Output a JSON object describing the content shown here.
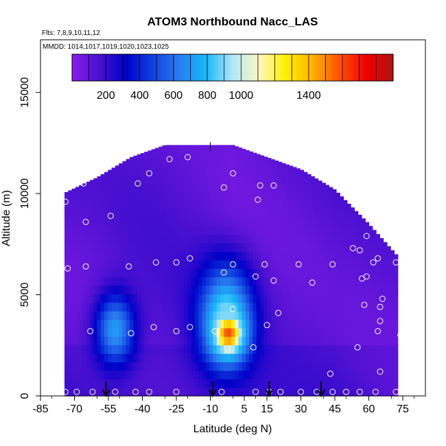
{
  "chart_data": {
    "type": "heatmap",
    "title": "ATOM3 Northbound Nacc_LAS",
    "subtitle_flights": "Flts: 7,8,9,10,11,12",
    "subtitle_dates": "MMDD: 1014,1017,1019,1020,1023,1025",
    "xlabel": "Latitude (deg N)",
    "ylabel": "Altitude (m)",
    "xlim": [
      -85,
      85
    ],
    "ylim": [
      0,
      17600
    ],
    "x_ticks": [
      -85,
      -70,
      -55,
      -40,
      -25,
      -10,
      5,
      15,
      30,
      45,
      60,
      75
    ],
    "x_tick_labels": [
      "-85",
      "-70",
      "-55",
      "-40",
      "-25",
      "-10",
      "5",
      "15",
      "30",
      "45",
      "60",
      "75"
    ],
    "y_ticks": [
      0,
      5000,
      10000,
      15000
    ],
    "y_tick_labels": [
      "0",
      "5000",
      "10000",
      "15000"
    ],
    "colorbar": {
      "range": [
        0,
        1900
      ],
      "ticks": [
        200,
        400,
        600,
        800,
        1000,
        1400
      ],
      "tick_labels": [
        "200",
        "400",
        "600",
        "800",
        "1000",
        "1400"
      ],
      "colors": [
        "#8a1ee8",
        "#4a10d0",
        "#0000c8",
        "#1040e0",
        "#2a7cf0",
        "#18b8f8",
        "#b0e8f8",
        "#fff8c0",
        "#fff000",
        "#ffb000",
        "#ff5000",
        "#f00000",
        "#b01010"
      ]
    },
    "profile_markers_x": [
      -56,
      -9,
      16,
      39
    ],
    "top_marker_x": -10,
    "field": [
      {
        "lat": -75,
        "alt": 0,
        "alt_top": 10000,
        "val": 120
      },
      {
        "lat": -60,
        "alt": 0,
        "alt_top": 10800,
        "val": 110
      },
      {
        "lat": -45,
        "alt": 0,
        "alt_top": 11800,
        "val": 130
      },
      {
        "lat": -30,
        "alt": 0,
        "alt_top": 12400,
        "val": 140
      },
      {
        "lat": -15,
        "alt": 0,
        "alt_top": 12400,
        "val": 130
      },
      {
        "lat": 0,
        "alt": 0,
        "alt_top": 12400,
        "val": 100
      },
      {
        "lat": 15,
        "alt": 0,
        "alt_top": 11800,
        "val": 110
      },
      {
        "lat": 30,
        "alt": 0,
        "alt_top": 11200,
        "val": 120
      },
      {
        "lat": 45,
        "alt": 0,
        "alt_top": 10200,
        "val": 130
      },
      {
        "lat": 60,
        "alt": 0,
        "alt_top": 8500,
        "val": 120
      },
      {
        "lat": 72,
        "alt": 0,
        "alt_top": 7000,
        "val": 110
      }
    ],
    "hotspots": [
      {
        "lat": -52,
        "alt": 3300,
        "val": 720,
        "rlat": 9,
        "ralt": 1800
      },
      {
        "lat": -2,
        "alt": 3100,
        "val": 1600,
        "rlat": 7,
        "ralt": 1100
      },
      {
        "lat": -3,
        "alt": 3900,
        "val": 900,
        "rlat": 12,
        "ralt": 2600
      }
    ],
    "samples": [
      {
        "lat": -83,
        "alt": 5400
      },
      {
        "lat": -77,
        "alt": 3400
      },
      {
        "lat": -76,
        "alt": 7500
      },
      {
        "lat": -74,
        "alt": 9600
      },
      {
        "lat": -73,
        "alt": 6300
      },
      {
        "lat": -66,
        "alt": 10500
      },
      {
        "lat": -65,
        "alt": 8600
      },
      {
        "lat": -65,
        "alt": 6400
      },
      {
        "lat": -63,
        "alt": 3200
      },
      {
        "lat": -54,
        "alt": 8900
      },
      {
        "lat": -46,
        "alt": 6400
      },
      {
        "lat": -45,
        "alt": 3100
      },
      {
        "lat": -42,
        "alt": 10500
      },
      {
        "lat": -37,
        "alt": 11000
      },
      {
        "lat": -35,
        "alt": 3400
      },
      {
        "lat": -34,
        "alt": 6600
      },
      {
        "lat": -28,
        "alt": 11700
      },
      {
        "lat": -25,
        "alt": 6600
      },
      {
        "lat": -25,
        "alt": 3200
      },
      {
        "lat": -20,
        "alt": 11800
      },
      {
        "lat": -19,
        "alt": 6800
      },
      {
        "lat": -19,
        "alt": 3400
      },
      {
        "lat": -10,
        "alt": 12600
      },
      {
        "lat": -8,
        "alt": 3200
      },
      {
        "lat": -4,
        "alt": 10300
      },
      {
        "lat": -4,
        "alt": 6100
      },
      {
        "lat": 0,
        "alt": 11000
      },
      {
        "lat": 0,
        "alt": 6500
      },
      {
        "lat": 0,
        "alt": 4300
      },
      {
        "lat": 9,
        "alt": 2400
      },
      {
        "lat": 10,
        "alt": 5900
      },
      {
        "lat": 11,
        "alt": 9700
      },
      {
        "lat": 12,
        "alt": 10400
      },
      {
        "lat": 14,
        "alt": 6500
      },
      {
        "lat": 15,
        "alt": 3500
      },
      {
        "lat": 18,
        "alt": 10400
      },
      {
        "lat": 18,
        "alt": 5700
      },
      {
        "lat": 20,
        "alt": 4100
      },
      {
        "lat": 29,
        "alt": 6500
      },
      {
        "lat": 33,
        "alt": 11500
      },
      {
        "lat": 35,
        "alt": 5600
      },
      {
        "lat": 43,
        "alt": 1100
      },
      {
        "lat": 44,
        "alt": 6500
      },
      {
        "lat": 53,
        "alt": 7300
      },
      {
        "lat": 55,
        "alt": 2400
      },
      {
        "lat": 56,
        "alt": 7200
      },
      {
        "lat": 57,
        "alt": 5800
      },
      {
        "lat": 58,
        "alt": 4500
      },
      {
        "lat": 59,
        "alt": 5900
      },
      {
        "lat": 59,
        "alt": 7900
      },
      {
        "lat": 62,
        "alt": 6600
      },
      {
        "lat": 64,
        "alt": 3200
      },
      {
        "lat": 64,
        "alt": 6800
      },
      {
        "lat": 65,
        "alt": 1200
      },
      {
        "lat": 65,
        "alt": 4400
      },
      {
        "lat": 65,
        "alt": 3700
      },
      {
        "lat": 66,
        "alt": 4800
      },
      {
        "lat": 66,
        "alt": 8400
      },
      {
        "lat": 72,
        "alt": 6600
      },
      {
        "lat": 74,
        "alt": 3000
      },
      {
        "lat": -74,
        "alt": 200
      },
      {
        "lat": -69,
        "alt": 200
      },
      {
        "lat": -62,
        "alt": 200
      },
      {
        "lat": -52,
        "alt": 200
      },
      {
        "lat": -43,
        "alt": 200
      },
      {
        "lat": -37,
        "alt": 200
      },
      {
        "lat": -25,
        "alt": 200
      },
      {
        "lat": -5,
        "alt": 200
      },
      {
        "lat": 10,
        "alt": 200
      },
      {
        "lat": 16,
        "alt": 200
      },
      {
        "lat": 21,
        "alt": 200
      },
      {
        "lat": 30,
        "alt": 200
      },
      {
        "lat": 37,
        "alt": 200
      },
      {
        "lat": 44,
        "alt": 200
      },
      {
        "lat": 50,
        "alt": 200
      },
      {
        "lat": 56,
        "alt": 200
      },
      {
        "lat": 63,
        "alt": 200
      },
      {
        "lat": 72,
        "alt": 200
      }
    ]
  }
}
